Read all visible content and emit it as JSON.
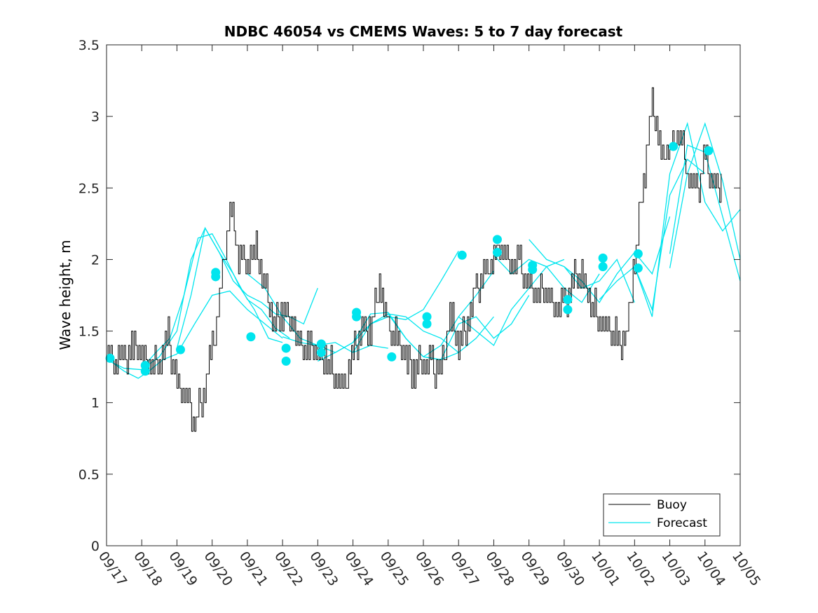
{
  "chart_data": {
    "type": "line",
    "title": "NDBC 46054 vs CMEMS Waves: 5 to 7 day forecast",
    "xlabel": "",
    "ylabel": "Wave height, m",
    "xlim": [
      0,
      18
    ],
    "ylim": [
      0,
      3.5
    ],
    "yticks": [
      0,
      0.5,
      1,
      1.5,
      2,
      2.5,
      3,
      3.5
    ],
    "ytick_labels": [
      "0",
      "0.5",
      "1",
      "1.5",
      "2",
      "2.5",
      "3",
      "3.5"
    ],
    "xtick_labels": [
      "09/17",
      "09/18",
      "09/19",
      "09/20",
      "09/21",
      "09/22",
      "09/23",
      "09/24",
      "09/25",
      "09/26",
      "09/27",
      "09/28",
      "09/29",
      "09/30",
      "10/01",
      "10/02",
      "10/03",
      "10/04",
      "10/05"
    ],
    "legend_position": "bottom-right",
    "legend": [
      "Buoy",
      "Forecast"
    ],
    "colors": {
      "buoy": "#000000",
      "forecast": "#00e5ee",
      "axes": "#262626"
    },
    "buoy": {
      "name": "Buoy",
      "x": [
        0,
        0.25,
        0.5,
        0.75,
        1,
        1.25,
        1.5,
        1.75,
        2,
        2.25,
        2.5,
        2.75,
        3,
        3.25,
        3.5,
        3.75,
        4,
        4.25,
        4.5,
        4.75,
        5,
        5.25,
        5.5,
        5.75,
        6,
        6.25,
        6.5,
        6.75,
        7,
        7.25,
        7.5,
        7.75,
        8,
        8.25,
        8.5,
        8.75,
        9,
        9.25,
        9.5,
        9.75,
        10,
        10.25,
        10.5,
        10.75,
        11,
        11.25,
        11.5,
        11.75,
        12,
        12.25,
        12.5,
        12.75,
        13,
        13.25,
        13.5,
        13.75,
        14,
        14.25,
        14.5,
        14.75,
        15,
        15.25,
        15.5,
        15.75,
        16,
        16.25,
        16.5,
        16.75,
        17,
        17.25
      ],
      "values": [
        1.35,
        1.3,
        1.3,
        1.4,
        1.3,
        1.25,
        1.3,
        1.45,
        1.1,
        1.05,
        0.85,
        1.05,
        1.35,
        1.8,
        2.35,
        2.05,
        2.0,
        2.05,
        1.8,
        1.55,
        1.65,
        1.6,
        1.35,
        1.4,
        1.35,
        1.3,
        1.2,
        1.05,
        1.4,
        1.5,
        1.5,
        1.85,
        1.5,
        1.45,
        1.3,
        1.2,
        1.3,
        1.25,
        1.2,
        1.6,
        1.45,
        1.55,
        1.8,
        1.9,
        2.0,
        2.1,
        1.95,
        1.95,
        1.8,
        1.75,
        1.75,
        1.7,
        1.65,
        1.85,
        1.9,
        1.7,
        1.6,
        1.5,
        1.45,
        1.4,
        2.0,
        2.55,
        3.1,
        2.7,
        2.8,
        2.9,
        2.6,
        2.45,
        2.7,
        2.5
      ]
    },
    "forecasts": [
      {
        "name": "Forecast",
        "x": [
          0,
          0.5,
          0.9,
          1.2,
          1.6,
          2.0,
          2.5,
          3.0,
          3.5,
          4.0,
          4.5,
          5.0
        ],
        "values": [
          1.31,
          1.22,
          1.17,
          1.22,
          1.3,
          1.34,
          1.55,
          1.75,
          1.78,
          1.65,
          1.55,
          1.45
        ]
      },
      {
        "name": "Forecast",
        "x": [
          1.0,
          1.4,
          1.8,
          2.2,
          2.6,
          3.0,
          3.4,
          3.8,
          4.2,
          4.6,
          5.0
        ],
        "values": [
          1.24,
          1.35,
          1.45,
          1.75,
          2.15,
          2.18,
          2.0,
          1.8,
          1.65,
          1.45,
          1.42
        ]
      },
      {
        "name": "Forecast",
        "x": [
          0,
          0.5,
          1.0,
          1.5,
          2.0,
          2.4,
          2.8,
          3.2,
          3.6,
          4.0,
          4.4,
          4.8,
          5.2
        ],
        "values": [
          1.3,
          1.24,
          1.23,
          1.32,
          1.5,
          2.0,
          2.22,
          2.05,
          1.9,
          1.72,
          1.65,
          1.52,
          1.45
        ]
      },
      {
        "name": "Forecast",
        "x": [
          2.0,
          2.4,
          2.8,
          3.2,
          3.6,
          4.0,
          4.4,
          4.8,
          5.2,
          5.6,
          6.0
        ],
        "values": [
          1.38,
          1.75,
          2.22,
          2.05,
          1.85,
          1.75,
          1.7,
          1.62,
          1.6,
          1.55,
          1.8
        ]
      },
      {
        "name": "Forecast",
        "x": [
          4.0,
          4.5,
          5.0,
          5.5,
          6.0,
          6.5,
          7.0,
          7.5,
          8.0
        ],
        "values": [
          1.9,
          1.8,
          1.6,
          1.45,
          1.4,
          1.42,
          1.35,
          1.4,
          1.38
        ]
      },
      {
        "name": "Forecast",
        "x": [
          5.0,
          5.5,
          6.0,
          6.5,
          7.0,
          7.5,
          8.0,
          8.5,
          9.0,
          9.5,
          10.0
        ],
        "values": [
          1.46,
          1.42,
          1.4,
          1.35,
          1.42,
          1.55,
          1.62,
          1.6,
          1.5,
          1.45,
          1.35
        ]
      },
      {
        "name": "Forecast",
        "x": [
          6.0,
          6.5,
          7.0,
          7.5,
          8.0,
          8.5,
          9.0,
          9.5,
          10.0,
          10.5,
          11.0
        ],
        "values": [
          1.29,
          1.35,
          1.42,
          1.62,
          1.63,
          1.45,
          1.32,
          1.3,
          1.35,
          1.45,
          1.6
        ]
      },
      {
        "name": "Forecast",
        "x": [
          7.0,
          7.5,
          8.0,
          8.5,
          9.0,
          9.5,
          10.0
        ],
        "values": [
          1.35,
          1.55,
          1.6,
          1.58,
          1.65,
          1.85,
          2.06
        ]
      },
      {
        "name": "Forecast",
        "x": [
          8.0,
          8.5,
          9.0,
          9.5,
          10.0,
          10.5,
          11.0
        ],
        "values": [
          1.62,
          1.45,
          1.32,
          1.4,
          1.6,
          1.75,
          1.92
        ]
      },
      {
        "name": "Forecast",
        "x": [
          9.0,
          9.5,
          10.0,
          10.5,
          11.0,
          11.5,
          12.0
        ],
        "values": [
          1.32,
          1.3,
          1.55,
          1.6,
          1.45,
          1.55,
          1.75
        ]
      },
      {
        "name": "Forecast",
        "x": [
          10.0,
          10.5,
          11.0,
          11.5,
          12.0,
          12.5,
          13.0
        ],
        "values": [
          1.6,
          1.5,
          1.4,
          1.65,
          1.8,
          1.95,
          2.0
        ]
      },
      {
        "name": "Forecast",
        "x": [
          11.0,
          11.5,
          12.0,
          12.5,
          13.0,
          13.5,
          14.0
        ],
        "values": [
          2.03,
          1.9,
          2.0,
          1.95,
          1.8,
          1.7,
          1.9
        ]
      },
      {
        "name": "Forecast",
        "x": [
          12.0,
          12.5,
          13.0,
          13.5,
          14.0,
          14.5,
          15.0
        ],
        "values": [
          2.14,
          2.0,
          1.95,
          1.8,
          1.85,
          2.0,
          1.7
        ]
      },
      {
        "name": "Forecast",
        "x": [
          13.0,
          13.5,
          14.0,
          14.5,
          15.0,
          15.5,
          16.0
        ],
        "values": [
          1.95,
          1.85,
          1.7,
          1.9,
          2.05,
          1.9,
          2.3
        ]
      },
      {
        "name": "Forecast",
        "x": [
          14.0,
          14.5,
          15.0,
          15.5,
          16.0,
          16.5,
          17.0
        ],
        "values": [
          1.72,
          1.85,
          1.95,
          1.65,
          2.45,
          2.7,
          2.6
        ]
      },
      {
        "name": "Forecast",
        "x": [
          15.0,
          15.5,
          16.0,
          16.5,
          17.0,
          17.5,
          18.0
        ],
        "values": [
          1.95,
          1.6,
          2.6,
          2.95,
          2.4,
          2.2,
          2.35
        ]
      },
      {
        "name": "Forecast",
        "x": [
          16.0,
          16.5,
          17.0,
          17.5,
          18.0
        ],
        "values": [
          2.04,
          2.8,
          2.75,
          2.3,
          1.85
        ]
      },
      {
        "name": "Forecast",
        "x": [
          16.0,
          16.5,
          17.0,
          17.5,
          18.0
        ],
        "values": [
          1.94,
          2.6,
          2.95,
          2.55,
          2.0
        ]
      }
    ],
    "forecast_markers": {
      "x": [
        0.1,
        1.1,
        1.1,
        2.1,
        3.1,
        3.1,
        4.1,
        5.1,
        5.1,
        6.1,
        6.1,
        7.1,
        7.1,
        8.1,
        9.1,
        9.1,
        10.1,
        11.1,
        11.1,
        12.1,
        12.1,
        13.1,
        13.1,
        14.1,
        14.1,
        15.1,
        15.1,
        16.1,
        17.1
      ],
      "values": [
        1.31,
        1.26,
        1.22,
        1.37,
        1.91,
        1.88,
        1.46,
        1.38,
        1.29,
        1.41,
        1.35,
        1.63,
        1.6,
        1.32,
        1.6,
        1.55,
        2.03,
        2.14,
        2.05,
        1.96,
        1.93,
        1.72,
        1.65,
        2.01,
        1.95,
        2.04,
        1.94,
        2.79,
        2.76
      ]
    }
  }
}
